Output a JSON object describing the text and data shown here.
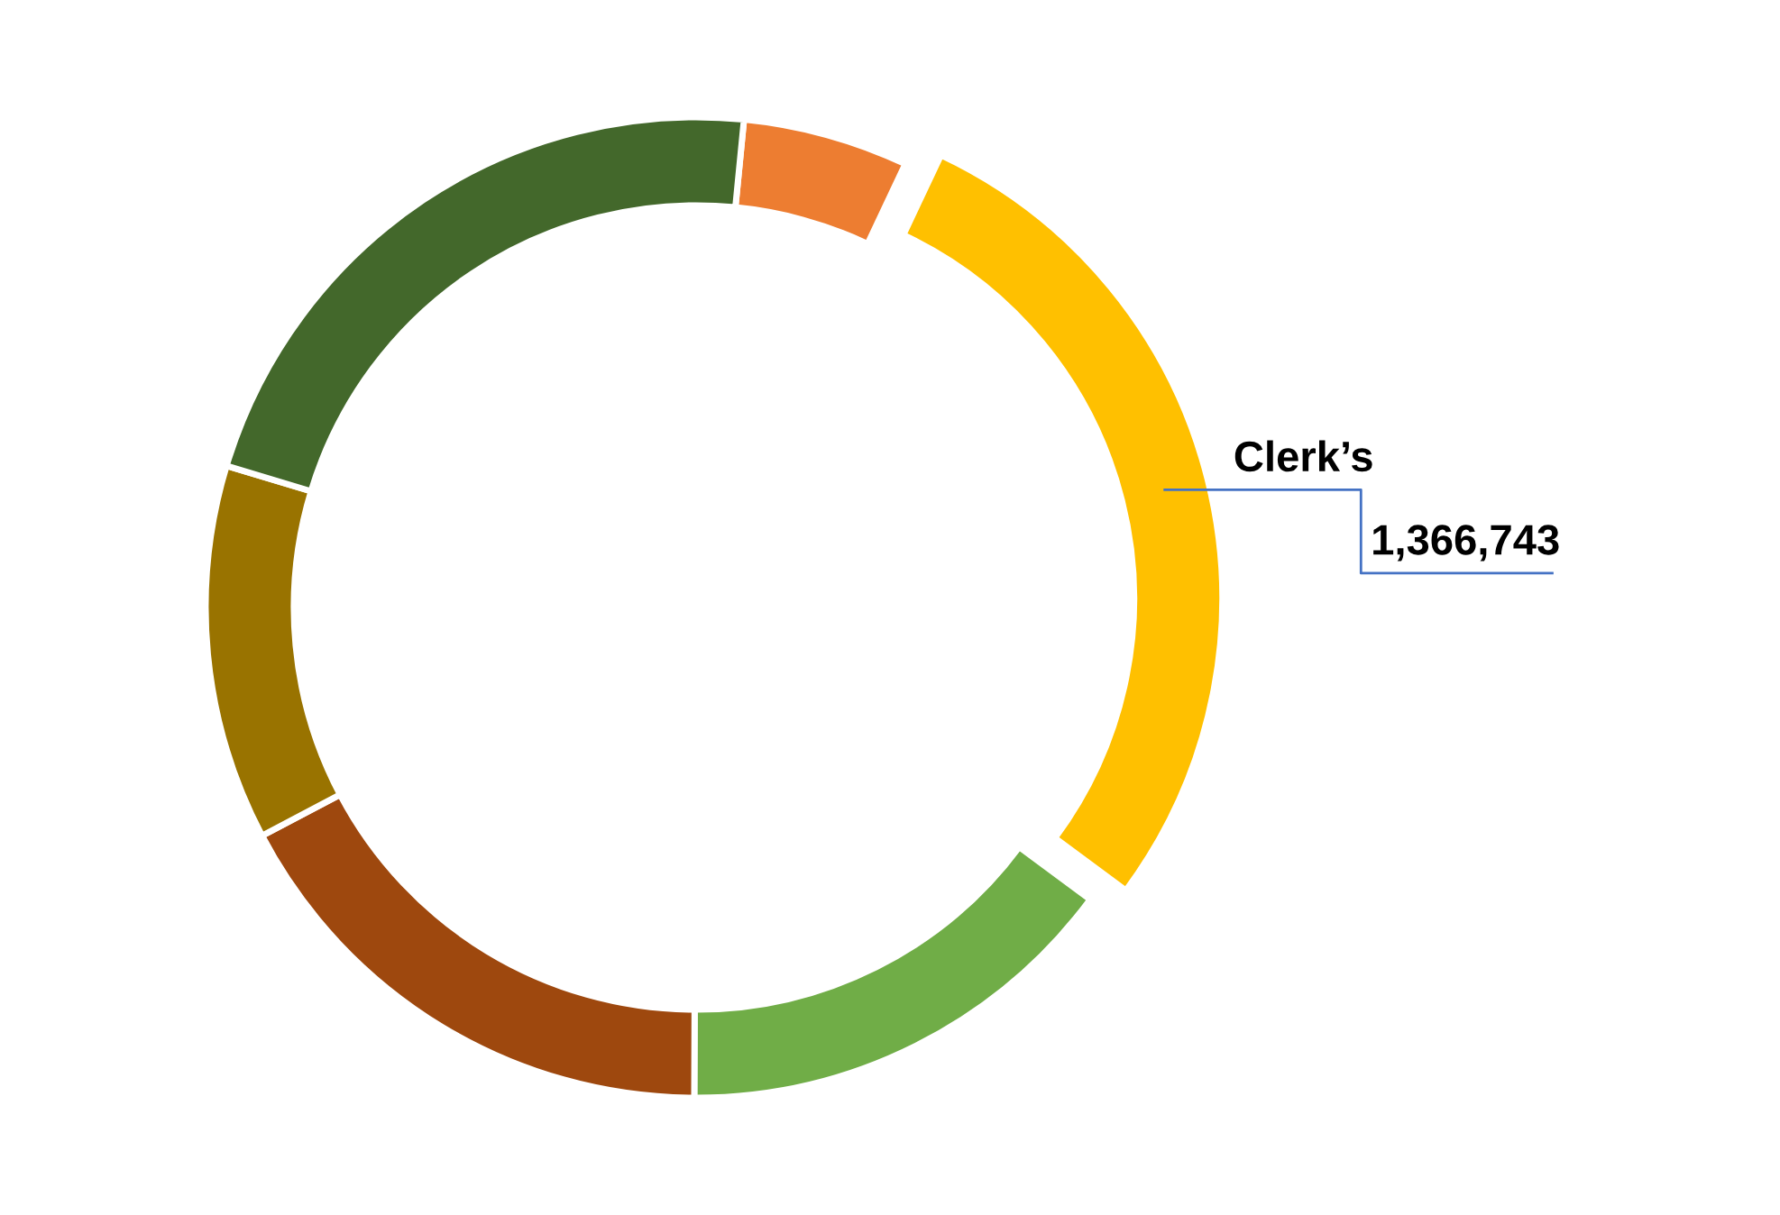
{
  "chart_data": {
    "type": "donut",
    "categories": [
      null,
      "Clerk’s",
      null,
      null,
      null,
      null
    ],
    "values": [
      265000,
      1366743,
      724000,
      837000,
      601000,
      1063000
    ],
    "value_labels": [
      null,
      "1,366,743",
      null,
      null,
      null,
      null
    ],
    "colors": [
      "#ed7d31",
      "#ffc000",
      "#70ad47",
      "#9e480e",
      "#997300",
      "#43682b"
    ],
    "legend": false
  }
}
